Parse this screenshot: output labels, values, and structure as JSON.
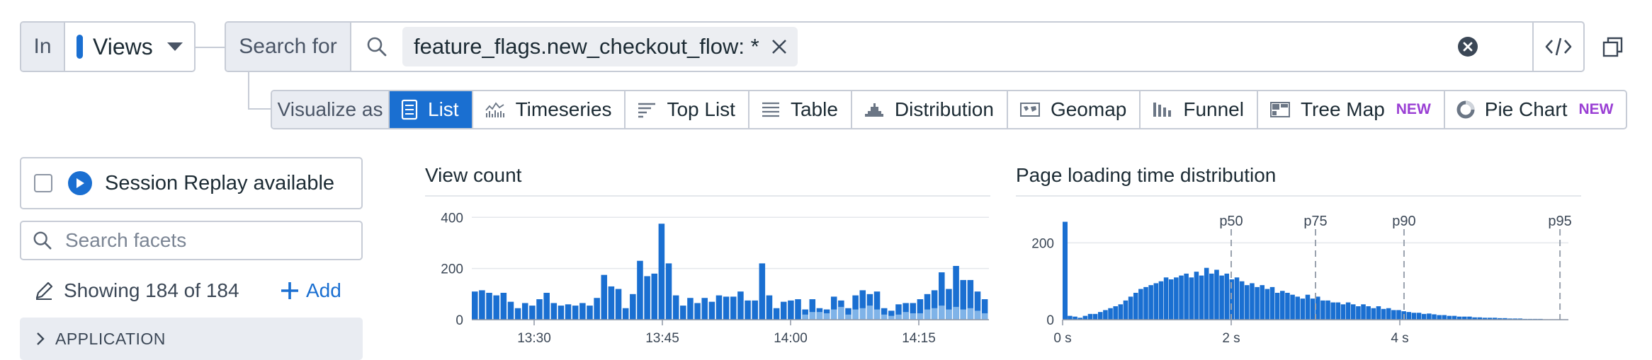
{
  "query_bar": {
    "in_label": "In",
    "source_value": "Views",
    "search_for_label": "Search for",
    "query_chip": "feature_flags.new_checkout_flow: *"
  },
  "visualize": {
    "label": "Visualize as",
    "options": [
      {
        "label": "List",
        "icon": "list-icon",
        "active": true,
        "badge": ""
      },
      {
        "label": "Timeseries",
        "icon": "timeseries-icon",
        "active": false,
        "badge": ""
      },
      {
        "label": "Top List",
        "icon": "toplist-icon",
        "active": false,
        "badge": ""
      },
      {
        "label": "Table",
        "icon": "table-icon",
        "active": false,
        "badge": ""
      },
      {
        "label": "Distribution",
        "icon": "distribution-icon",
        "active": false,
        "badge": ""
      },
      {
        "label": "Geomap",
        "icon": "geomap-icon",
        "active": false,
        "badge": ""
      },
      {
        "label": "Funnel",
        "icon": "funnel-icon",
        "active": false,
        "badge": ""
      },
      {
        "label": "Tree Map",
        "icon": "treemap-icon",
        "active": false,
        "badge": "NEW"
      },
      {
        "label": "Pie Chart",
        "icon": "piechart-icon",
        "active": false,
        "badge": "NEW"
      }
    ]
  },
  "sidebar": {
    "replay_label": "Session Replay available",
    "facet_search_placeholder": "Search facets",
    "showing_text": "Showing 184 of 184",
    "add_label": "Add",
    "section_label": "APPLICATION"
  },
  "colors": {
    "accent": "#1a6fd1",
    "accent_light": "#7fb3e8",
    "new_badge": "#9a3fd4",
    "border": "#c7ccd6"
  },
  "chart_data": [
    {
      "type": "bar",
      "title": "View count",
      "stacked": true,
      "ylim": [
        0,
        420
      ],
      "yticks": [
        0,
        200,
        400
      ],
      "x_tick_labels": [
        "13:30",
        "13:45",
        "14:00",
        "14:15"
      ],
      "series": [
        {
          "values": [
            110,
            115,
            105,
            95,
            105,
            70,
            45,
            65,
            55,
            80,
            105,
            65,
            55,
            60,
            55,
            65,
            55,
            85,
            175,
            130,
            120,
            45,
            100,
            230,
            170,
            180,
            375,
            220,
            95,
            55,
            85,
            65,
            85,
            70,
            95,
            90,
            90,
            110,
            75,
            75,
            220,
            95,
            45,
            70,
            75,
            80,
            40,
            80,
            45,
            40,
            90,
            75,
            45,
            95,
            115,
            100,
            110,
            45,
            35,
            60,
            65,
            65,
            80,
            100,
            115,
            185,
            120,
            210,
            155,
            155,
            110,
            80
          ]
        },
        {
          "values": [
            0,
            0,
            0,
            0,
            0,
            0,
            0,
            0,
            0,
            0,
            0,
            0,
            0,
            0,
            0,
            0,
            0,
            0,
            0,
            0,
            0,
            0,
            0,
            0,
            0,
            0,
            0,
            0,
            0,
            0,
            0,
            0,
            0,
            0,
            0,
            0,
            0,
            0,
            0,
            0,
            0,
            0,
            0,
            0,
            0,
            0,
            20,
            30,
            30,
            25,
            40,
            50,
            20,
            40,
            45,
            55,
            40,
            20,
            15,
            20,
            30,
            25,
            25,
            40,
            45,
            55,
            40,
            50,
            40,
            45,
            35,
            25
          ]
        }
      ]
    },
    {
      "type": "bar",
      "title": "Page loading time distribution",
      "ylim": [
        0,
        280
      ],
      "yticks": [
        0,
        200
      ],
      "x_tick_labels": [
        "0 s",
        "2 s",
        "4 s"
      ],
      "percentiles": [
        {
          "label": "p50",
          "x": 2.0
        },
        {
          "label": "p75",
          "x": 3.0
        },
        {
          "label": "p90",
          "x": 4.05
        },
        {
          "label": "p95",
          "x": 5.9
        }
      ],
      "values": [
        255,
        10,
        8,
        5,
        10,
        15,
        15,
        20,
        25,
        30,
        35,
        40,
        50,
        60,
        70,
        80,
        85,
        90,
        95,
        100,
        110,
        105,
        110,
        115,
        120,
        110,
        125,
        115,
        135,
        120,
        130,
        115,
        120,
        105,
        110,
        100,
        90,
        95,
        85,
        90,
        80,
        85,
        70,
        75,
        70,
        65,
        60,
        55,
        65,
        55,
        60,
        50,
        50,
        45,
        45,
        40,
        45,
        40,
        35,
        40,
        35,
        30,
        35,
        28,
        30,
        25,
        25,
        22,
        20,
        18,
        18,
        15,
        16,
        14,
        12,
        12,
        10,
        10,
        8,
        8,
        8,
        6,
        6,
        5,
        5,
        5,
        4,
        4,
        3,
        3,
        3,
        2,
        2,
        2,
        2,
        1,
        1,
        1,
        1,
        1
      ]
    }
  ]
}
